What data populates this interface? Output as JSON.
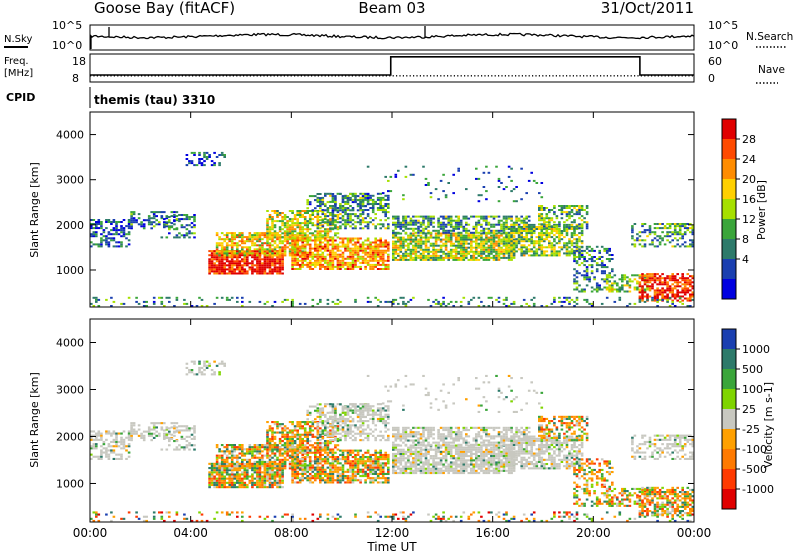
{
  "header": {
    "site": "Goose Bay (fitACF)",
    "beam": "Beam 03",
    "date": "31/Oct/2011"
  },
  "noise_panel": {
    "left_label": "N.Sky",
    "right_label": "N.Search",
    "left_ticks": [
      "10^5",
      "10^0"
    ],
    "right_ticks": [
      "10^5",
      "10^0"
    ]
  },
  "freq_panel": {
    "left_label_line1": "Freq.",
    "left_label_line2": "[MHz]",
    "right_label": "Nave",
    "left_ticks": [
      "18",
      "8"
    ],
    "right_ticks": [
      "60",
      "0"
    ]
  },
  "cpid_panel": {
    "label": "CPID",
    "text": "themis (tau) 3310"
  },
  "time_axis": {
    "label": "Time UT",
    "ticks": [
      "00:00",
      "04:00",
      "08:00",
      "12:00",
      "16:00",
      "20:00",
      "00:00"
    ]
  },
  "chart_data": [
    {
      "type": "heatmap",
      "title": "",
      "xlabel": "Time UT",
      "ylabel": "Slant Range [km]",
      "x_ticks": [
        "00:00",
        "04:00",
        "08:00",
        "12:00",
        "16:00",
        "20:00",
        "00:00"
      ],
      "xlim_hours": [
        0,
        24
      ],
      "y_ticks": [
        1000,
        2000,
        3000,
        4000
      ],
      "ylim": [
        180,
        4500
      ],
      "colorbar": {
        "label": "Power [dB]",
        "tick_labels": [
          "28",
          "24",
          "20",
          "16",
          "12",
          "8",
          "4"
        ],
        "colors_top_to_bottom": [
          "#e00000",
          "#ff4a00",
          "#ff8c00",
          "#ffd000",
          "#a6e000",
          "#3aa53a",
          "#2d7a6a",
          "#1a3fb0",
          "#0000e0"
        ]
      }
    },
    {
      "type": "heatmap",
      "title": "",
      "xlabel": "Time UT",
      "ylabel": "Slant Range [km]",
      "x_ticks": [
        "00:00",
        "04:00",
        "08:00",
        "12:00",
        "16:00",
        "20:00",
        "00:00"
      ],
      "xlim_hours": [
        0,
        24
      ],
      "y_ticks": [
        1000,
        2000,
        3000,
        4000
      ],
      "ylim": [
        180,
        4500
      ],
      "colorbar": {
        "label": "Velocity [m s-1]",
        "tick_labels": [
          "1000",
          "500",
          "100",
          "25",
          "-25",
          "-100",
          "-500",
          "-1000"
        ],
        "colors_top_to_bottom": [
          "#1a3fb0",
          "#2d7a6a",
          "#3aa53a",
          "#7fd400",
          "#c8c8c0",
          "#ffa000",
          "#ff7a00",
          "#ff3a00",
          "#e00000"
        ]
      }
    }
  ],
  "colors": {
    "ground_scatter": "#c8c8c0"
  }
}
